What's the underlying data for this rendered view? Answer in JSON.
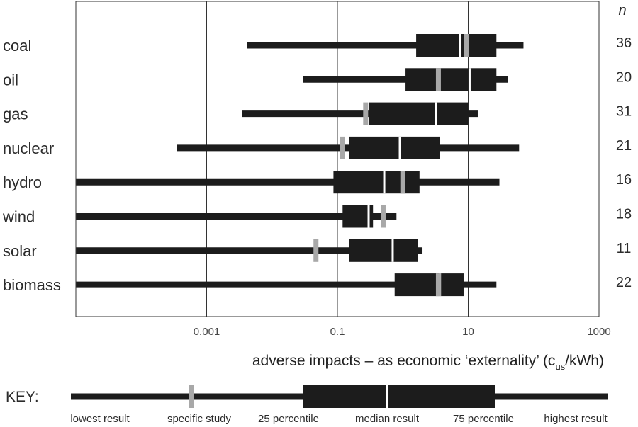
{
  "chart_data": {
    "type": "box",
    "xscale": "log",
    "xlim": [
      1e-05,
      1000
    ],
    "xticks": [
      0.001,
      0.1,
      10,
      1000
    ],
    "xtick_labels": [
      "0.001",
      "0.1",
      "10",
      "1000"
    ],
    "xlabel_main": "adverse impacts – as economic ‘externality’ (c",
    "xlabel_sub": "us",
    "xlabel_end": "/kWh)",
    "n_header": "n",
    "grid": "vertical at ticks",
    "colors": {
      "box": "#1c1c1c",
      "study_marker": "#a8a8a8",
      "grid": "#333333"
    },
    "categories": [
      "coal",
      "oil",
      "gas",
      "nuclear",
      "hydro",
      "wind",
      "solar",
      "biomass"
    ],
    "series": [
      {
        "category": "coal",
        "n": "36",
        "low": 0.0042,
        "q1": 1.6,
        "median": 7.5,
        "q3": 27,
        "high": 70,
        "study": 9.5
      },
      {
        "category": "oil",
        "n": "20",
        "low": 0.03,
        "q1": 1.1,
        "median": 10.5,
        "q3": 27,
        "high": 40,
        "study": 3.5
      },
      {
        "category": "gas",
        "n": "31",
        "low": 0.0035,
        "q1": 0.3,
        "median": 3.2,
        "q3": 10,
        "high": 14,
        "study": 0.27
      },
      {
        "category": "nuclear",
        "n": "21",
        "low": 0.00035,
        "q1": 0.15,
        "median": 0.9,
        "q3": 3.7,
        "high": 60,
        "study": 0.12
      },
      {
        "category": "hydro",
        "n": "16",
        "low": 1e-05,
        "q1": 0.087,
        "median": 0.52,
        "q3": 1.8,
        "high": 30,
        "study": 1.0
      },
      {
        "category": "wind",
        "n": "18",
        "low": 1e-05,
        "q1": 0.12,
        "median": 0.3,
        "q3": 0.35,
        "high": 0.8,
        "study": 0.5
      },
      {
        "category": "solar",
        "n": "11",
        "low": 1e-05,
        "q1": 0.15,
        "median": 0.7,
        "q3": 1.7,
        "high": 2.0,
        "study": 0.047
      },
      {
        "category": "biomass",
        "n": "22",
        "low": 1e-05,
        "q1": 0.75,
        "median": 3.7,
        "q3": 8.5,
        "high": 27,
        "study": 3.5
      }
    ]
  },
  "key": {
    "title": "KEY:",
    "labels": [
      "lowest result",
      "specific study",
      "25 percentile",
      "median result",
      "75 percentile",
      "highest result"
    ]
  }
}
